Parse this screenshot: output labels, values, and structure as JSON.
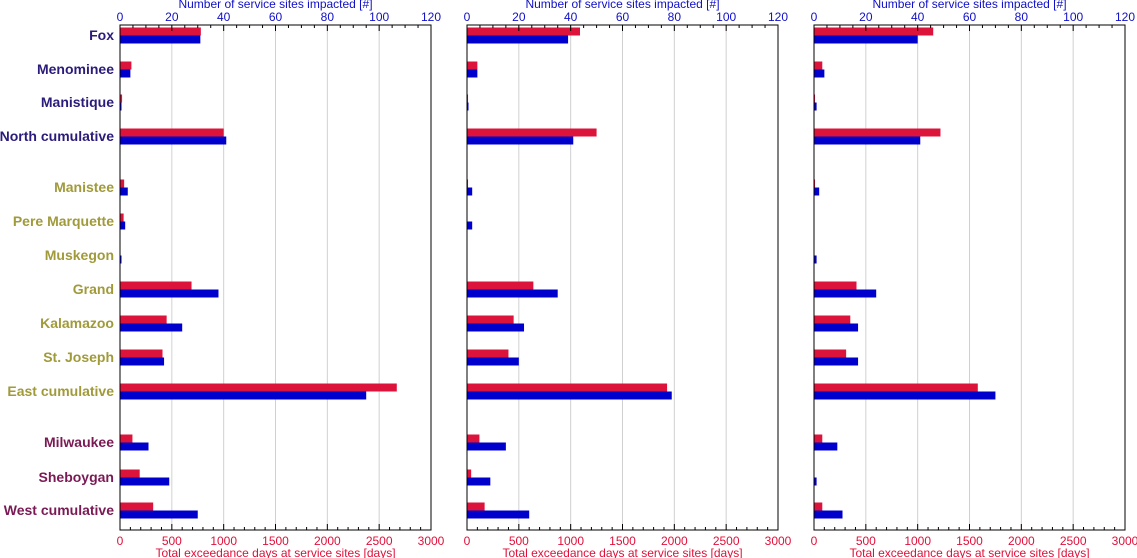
{
  "chart_data": {
    "type": "bar",
    "orientation": "horizontal",
    "categories": [
      "Fox",
      "Menominee",
      "Manistique",
      "North cumulative",
      "Manistee",
      "Pere Marquette",
      "Muskegon",
      "Grand",
      "Kalamazoo",
      "St. Joseph",
      "East cumulative",
      "Milwaukee",
      "Sheboygan",
      "West cumulative"
    ],
    "category_groups": [
      "north",
      "north",
      "north",
      "north",
      "east",
      "east",
      "east",
      "east",
      "east",
      "east",
      "east",
      "west",
      "west",
      "west"
    ],
    "group_colors": {
      "north": "#2b1b7a",
      "east": "#a09a3a",
      "west": "#7a1a55"
    },
    "series_colors": {
      "days": "#dc143c",
      "sites": "#0000cd"
    },
    "x_bottom": {
      "label": "Total exceedance days at service sites [days]",
      "range": [
        0,
        3000
      ],
      "ticks": [
        0,
        500,
        1000,
        1500,
        2000,
        2500,
        3000
      ]
    },
    "x_top": {
      "label": "Number of service sites impacted [#]",
      "range": [
        0,
        120
      ],
      "ticks": [
        0,
        20,
        40,
        60,
        80,
        100,
        120
      ]
    },
    "grid": true,
    "panels": [
      {
        "days": [
          780,
          110,
          20,
          1000,
          40,
          35,
          0,
          690,
          450,
          410,
          2670,
          120,
          190,
          320
        ],
        "sites": [
          31,
          4,
          0.5,
          41,
          3,
          2,
          0.5,
          38,
          24,
          17,
          95,
          11,
          19,
          30
        ]
      },
      {
        "days": [
          1090,
          100,
          10,
          1250,
          10,
          0,
          0,
          640,
          450,
          400,
          1930,
          120,
          40,
          170
        ],
        "sites": [
          39,
          4,
          0.5,
          41,
          2,
          2,
          0,
          35,
          22,
          20,
          79,
          15,
          9,
          24
        ]
      },
      {
        "days": [
          1150,
          80,
          10,
          1220,
          10,
          0,
          0,
          410,
          350,
          310,
          1580,
          80,
          0,
          80
        ],
        "sites": [
          40,
          4,
          1,
          41,
          2,
          0,
          1,
          24,
          17,
          17,
          70,
          9,
          1,
          11
        ]
      }
    ]
  }
}
